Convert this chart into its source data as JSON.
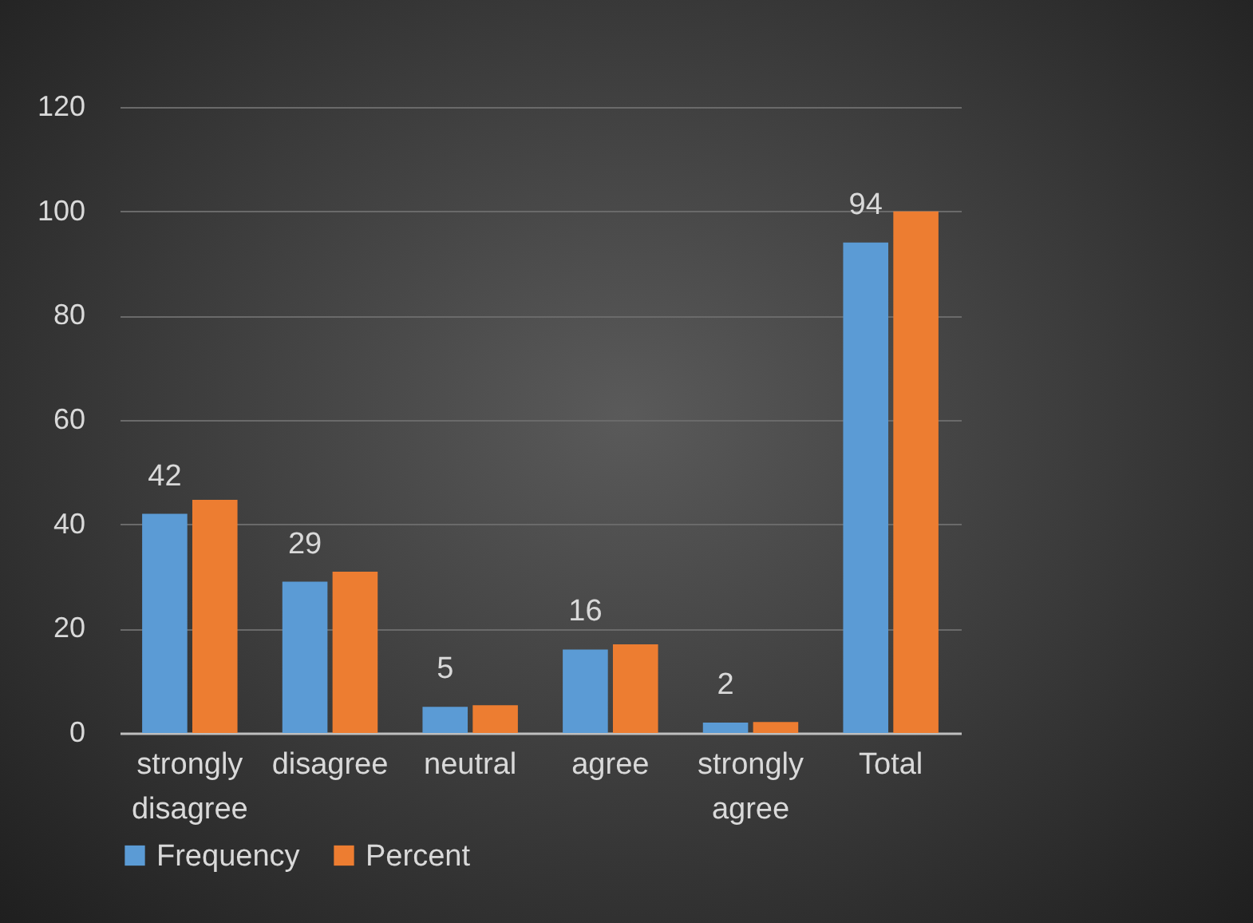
{
  "chart_data": {
    "type": "bar",
    "categories": [
      "strongly disagree",
      "disagree",
      "neutral",
      "agree",
      "strongly agree",
      "Total"
    ],
    "series": [
      {
        "name": "Frequency",
        "color": "#5b9bd5",
        "values": [
          42,
          29,
          5,
          16,
          2,
          94
        ],
        "value_labels": [
          "42",
          "29",
          "5",
          "16",
          "2",
          "94"
        ]
      },
      {
        "name": "Percent",
        "color": "#ed7d31",
        "values": [
          44.7,
          30.9,
          5.3,
          17.0,
          2.1,
          100
        ]
      }
    ],
    "ylim": [
      0,
      120
    ],
    "yticks": [
      0,
      20,
      40,
      60,
      80,
      100,
      120
    ],
    "grid": "y",
    "legend": "bottom"
  }
}
